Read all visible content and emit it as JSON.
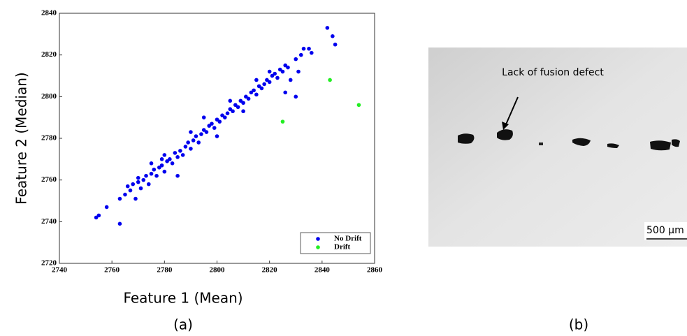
{
  "chart_data": {
    "type": "scatter",
    "x_label": "Feature 1 (Mean)",
    "y_label": "Feature 2 (Median)",
    "caption": "(a)",
    "xlim": [
      2740,
      2860
    ],
    "xticks": [
      2740,
      2760,
      2780,
      2800,
      2820,
      2840,
      2860
    ],
    "ylim": [
      2720,
      2840
    ],
    "yticks": [
      2720,
      2740,
      2760,
      2780,
      2800,
      2820,
      2840
    ],
    "legend": "lower right",
    "series": [
      {
        "name": "No Drift",
        "color": "#0000ee",
        "x": [
          2754,
          2755,
          2758,
          2763,
          2763,
          2765,
          2766,
          2767,
          2768,
          2769,
          2770,
          2771,
          2772,
          2773,
          2774,
          2775,
          2776,
          2777,
          2778,
          2779,
          2780,
          2781,
          2782,
          2783,
          2784,
          2785,
          2786,
          2787,
          2788,
          2789,
          2790,
          2791,
          2792,
          2793,
          2794,
          2795,
          2796,
          2797,
          2798,
          2799,
          2800,
          2801,
          2802,
          2803,
          2804,
          2805,
          2806,
          2807,
          2808,
          2809,
          2810,
          2811,
          2812,
          2813,
          2814,
          2815,
          2816,
          2817,
          2818,
          2819,
          2820,
          2821,
          2822,
          2823,
          2824,
          2825,
          2826,
          2827,
          2828,
          2830,
          2831,
          2832,
          2833,
          2835,
          2836,
          2842,
          2844,
          2845,
          2830,
          2826,
          2785,
          2779,
          2775,
          2790,
          2800,
          2810,
          2795,
          2805,
          2815,
          2820,
          2780,
          2770
        ],
        "values": [
          2742,
          2743,
          2747,
          2739,
          2751,
          2753,
          2757,
          2755,
          2758,
          2751,
          2759,
          2756,
          2760,
          2762,
          2758,
          2763,
          2765,
          2762,
          2766,
          2767,
          2764,
          2769,
          2770,
          2768,
          2773,
          2771,
          2774,
          2772,
          2776,
          2778,
          2775,
          2779,
          2781,
          2778,
          2782,
          2784,
          2783,
          2786,
          2787,
          2785,
          2789,
          2788,
          2791,
          2790,
          2792,
          2794,
          2793,
          2796,
          2795,
          2798,
          2797,
          2800,
          2799,
          2802,
          2803,
          2801,
          2805,
          2804,
          2806,
          2808,
          2807,
          2810,
          2811,
          2809,
          2813,
          2812,
          2815,
          2814,
          2808,
          2818,
          2812,
          2820,
          2823,
          2823,
          2821,
          2833,
          2829,
          2825,
          2800,
          2802,
          2762,
          2770,
          2768,
          2783,
          2781,
          2793,
          2790,
          2798,
          2808,
          2812,
          2772,
          2761
        ]
      },
      {
        "name": "Drift",
        "color": "#22ee22",
        "x": [
          2825,
          2843,
          2854
        ],
        "values": [
          2788,
          2808,
          2796
        ]
      }
    ]
  },
  "micrograph": {
    "annotation": "Lack of fusion defect",
    "scale_bar": "500 µm",
    "caption": "(b)"
  }
}
